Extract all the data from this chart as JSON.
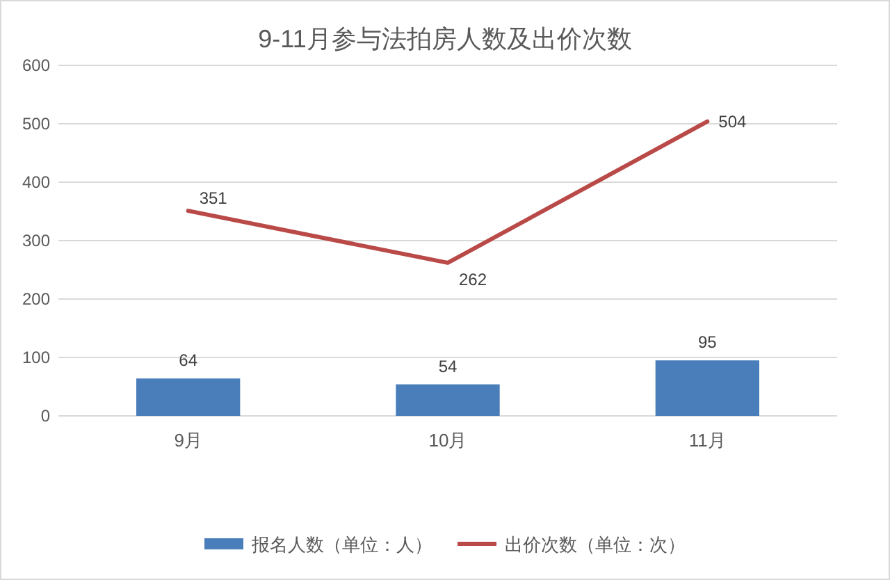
{
  "chart_data": {
    "type": "bar",
    "title": "9-11月参与法拍房人数及出价次数",
    "categories": [
      "9月",
      "10月",
      "11月"
    ],
    "series": [
      {
        "name": "报名人数（单位：人）",
        "color": "#4a7ebb",
        "values": [
          64,
          54,
          95
        ]
      },
      {
        "name": "出价次数（单位：次）",
        "type": "line",
        "color": "#b94a48",
        "values": [
          351,
          262,
          504
        ]
      }
    ],
    "ylim": [
      0,
      600
    ],
    "yticks": [
      0,
      100,
      200,
      300,
      400,
      500,
      600
    ],
    "grid": "y",
    "legend": "bottom",
    "data_labels": true
  }
}
